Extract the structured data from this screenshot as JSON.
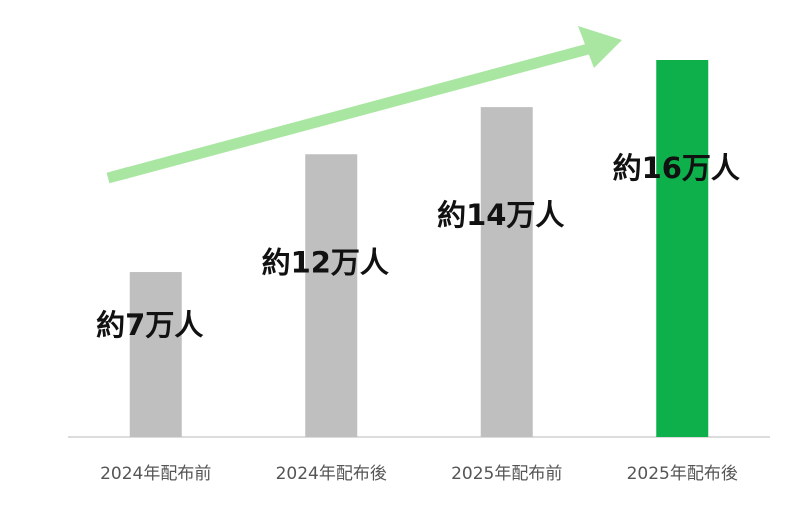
{
  "chart_data": {
    "type": "bar",
    "categories": [
      "2024年配布前",
      "2024年配布後",
      "2025年配布前",
      "2025年配布後"
    ],
    "values": [
      7,
      12,
      14,
      16
    ],
    "value_labels": [
      "約7万人",
      "約12万人",
      "約14万人",
      "約16万人"
    ],
    "colors": [
      "#bfbfbf",
      "#bfbfbf",
      "#bfbfbf",
      "#0db04b"
    ]
  }
}
